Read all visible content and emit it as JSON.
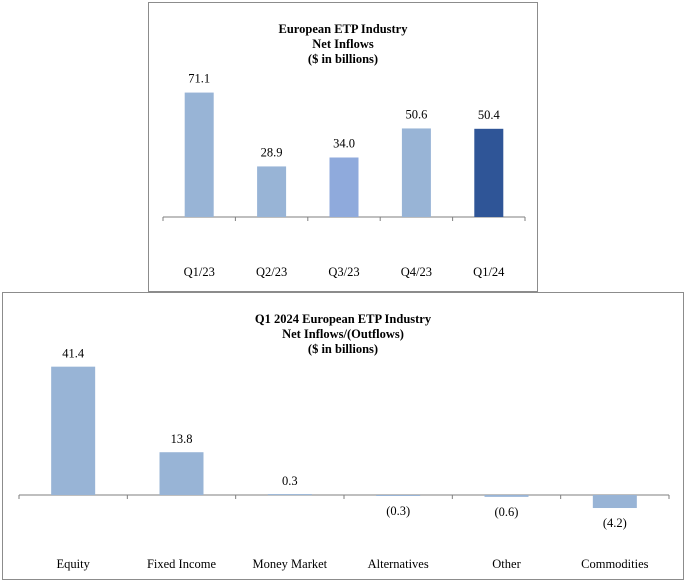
{
  "chart_data": [
    {
      "type": "bar",
      "title_lines": [
        "European ETP Industry",
        "Net Inflows",
        "($ in billions)"
      ],
      "categories": [
        "Q1/23",
        "Q2/23",
        "Q3/23",
        "Q4/23",
        "Q1/24"
      ],
      "values": [
        71.1,
        28.9,
        34.0,
        50.6,
        50.4
      ],
      "value_labels": [
        "71.1",
        "28.9",
        "34.0",
        "50.6",
        "50.4"
      ],
      "colors": [
        "#98b4d6",
        "#98b4d6",
        "#8faadc",
        "#98b4d6",
        "#2f5597"
      ],
      "ylim": [
        0,
        80
      ],
      "xlabel": "",
      "ylabel": "",
      "grid": false,
      "legend": "none"
    },
    {
      "type": "bar",
      "title_lines": [
        "Q1 2024 European ETP Industry",
        "Net Inflows/(Outflows)",
        "($ in billions)"
      ],
      "categories": [
        "Equity",
        "Fixed Income",
        "Money Market",
        "Alternatives",
        "Other",
        "Commodities"
      ],
      "values": [
        41.4,
        13.8,
        0.3,
        -0.3,
        -0.6,
        -4.2
      ],
      "value_labels": [
        "41.4",
        "13.8",
        "0.3",
        "(0.3)",
        "(0.6)",
        "(4.2)"
      ],
      "colors": [
        "#98b4d6",
        "#98b4d6",
        "#98b4d6",
        "#98b4d6",
        "#98b4d6",
        "#98b4d6"
      ],
      "ylim": [
        -5,
        45
      ],
      "xlabel": "",
      "ylabel": "",
      "grid": false,
      "legend": "none"
    }
  ]
}
